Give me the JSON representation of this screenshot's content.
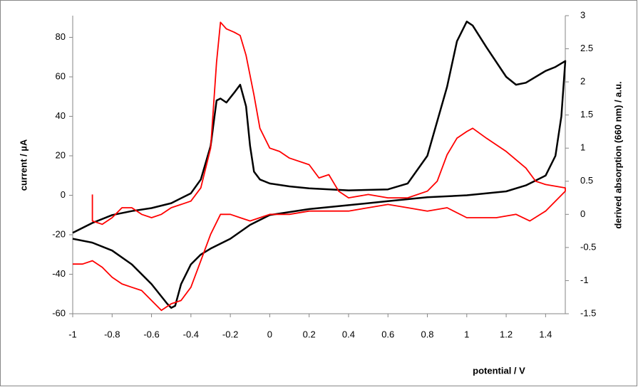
{
  "chart_data": {
    "type": "line",
    "x_label": "potential / V",
    "y_label": "current / µA",
    "y2_label": "derived absorption (660 nm) / a.u.",
    "y2_label_color": "#ff0000",
    "xlim": [
      -1,
      1.5
    ],
    "xticks": [
      -1,
      -0.8,
      -0.6,
      -0.4,
      -0.2,
      0,
      0.2,
      0.4,
      0.6,
      0.8,
      1,
      1.2,
      1.4
    ],
    "ylim": [
      -60,
      91
    ],
    "yticks": [
      -60,
      -40,
      -20,
      0,
      20,
      40,
      60,
      80
    ],
    "y2lim": [
      -1.5,
      3
    ],
    "y2ticks": [
      -1.5,
      -1,
      -0.5,
      0,
      0.5,
      1,
      1.5,
      2,
      2.5,
      3
    ],
    "grid": false,
    "series": [
      {
        "color": "#000000",
        "axis": "y",
        "x": [
          -1,
          -0.9,
          -0.8,
          -0.7,
          -0.6,
          -0.5,
          -0.4,
          -0.35,
          -0.3,
          -0.27,
          -0.25,
          -0.22,
          -0.18,
          -0.15,
          -0.12,
          -0.1,
          -0.08,
          -0.05,
          0,
          0.1,
          0.2,
          0.4,
          0.6,
          0.7,
          0.8,
          0.9,
          0.95,
          1.0,
          1.03,
          1.1,
          1.2,
          1.25,
          1.3,
          1.4,
          1.45,
          1.5,
          1.48,
          1.45,
          1.4,
          1.3,
          1.2,
          1.0,
          0.8,
          0.6,
          0.4,
          0.2,
          0,
          -0.1,
          -0.2,
          -0.3,
          -0.35,
          -0.4,
          -0.45,
          -0.48,
          -0.5,
          -0.52,
          -0.6,
          -0.7,
          -0.8,
          -0.9,
          -1.0
        ],
        "values": [
          -19,
          -14,
          -10,
          -8,
          -6.5,
          -4,
          1,
          8,
          25,
          48,
          49,
          47,
          52,
          56,
          45,
          25,
          12,
          8,
          6,
          4.5,
          3.5,
          2.5,
          3,
          6,
          20,
          55,
          78,
          88,
          86,
          75,
          60,
          56,
          57,
          63,
          65,
          68,
          40,
          20,
          10,
          5,
          2,
          0,
          -1,
          -3,
          -5,
          -7,
          -10,
          -15,
          -22,
          -27,
          -30,
          -35,
          -45,
          -56,
          -57,
          -55,
          -45,
          -35,
          -28,
          -24,
          -22
        ]
      },
      {
        "color": "#ff0000",
        "axis": "y2",
        "x": [
          -0.9,
          -0.9,
          -0.85,
          -0.8,
          -0.75,
          -0.7,
          -0.65,
          -0.6,
          -0.55,
          -0.5,
          -0.45,
          -0.4,
          -0.35,
          -0.3,
          -0.27,
          -0.25,
          -0.22,
          -0.18,
          -0.15,
          -0.12,
          -0.08,
          -0.05,
          0,
          0.05,
          0.1,
          0.2,
          0.25,
          0.3,
          0.35,
          0.4,
          0.5,
          0.6,
          0.7,
          0.8,
          0.85,
          0.9,
          0.95,
          1.0,
          1.03,
          1.1,
          1.2,
          1.3,
          1.35,
          1.4,
          1.5,
          1.5,
          1.45,
          1.4,
          1.32,
          1.25,
          1.15,
          1.0,
          0.9,
          0.8,
          0.7,
          0.6,
          0.5,
          0.4,
          0.3,
          0.2,
          0.1,
          0,
          -0.05,
          -0.1,
          -0.15,
          -0.2,
          -0.25,
          -0.3,
          -0.35,
          -0.4,
          -0.45,
          -0.5,
          -0.55,
          -0.6,
          -0.65,
          -0.7,
          -0.75,
          -0.8,
          -0.85,
          -0.9,
          -0.95,
          -1.0
        ],
        "values": [
          0.3,
          -0.1,
          -0.15,
          -0.05,
          0.1,
          0.1,
          0,
          -0.05,
          0,
          0.1,
          0.15,
          0.2,
          0.4,
          1.0,
          2.3,
          2.9,
          2.8,
          2.75,
          2.7,
          2.4,
          1.8,
          1.3,
          1.0,
          0.95,
          0.85,
          0.75,
          0.55,
          0.6,
          0.35,
          0.25,
          0.3,
          0.25,
          0.25,
          0.35,
          0.5,
          0.9,
          1.15,
          1.25,
          1.3,
          1.15,
          0.95,
          0.7,
          0.5,
          0.45,
          0.4,
          0.35,
          0.2,
          0.05,
          -0.1,
          0,
          -0.05,
          -0.05,
          0.1,
          0.05,
          0.1,
          0.15,
          0.1,
          0.05,
          0.05,
          0.05,
          0,
          0,
          -0.05,
          -0.1,
          -0.05,
          0,
          0,
          -0.3,
          -0.7,
          -1.1,
          -1.3,
          -1.35,
          -1.45,
          -1.3,
          -1.15,
          -1.1,
          -1.05,
          -0.95,
          -0.8,
          -0.7,
          -0.75,
          -0.75
        ]
      }
    ]
  }
}
